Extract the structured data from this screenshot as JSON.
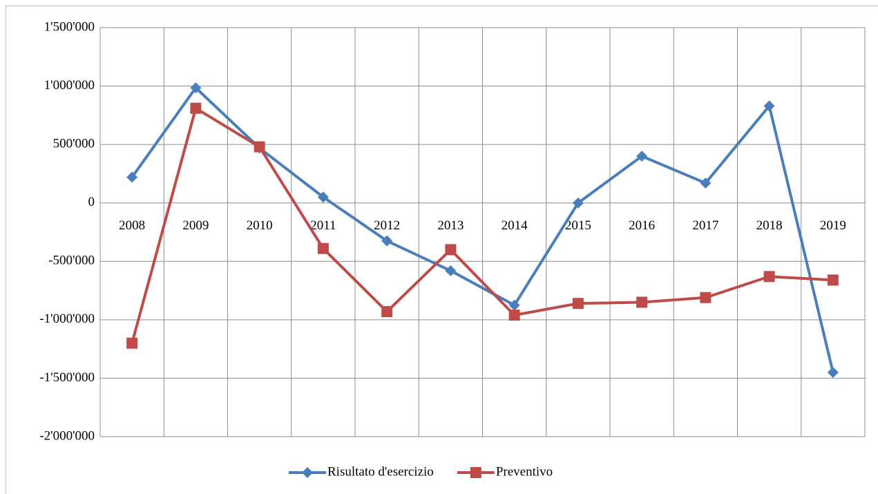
{
  "chart_data": {
    "type": "line",
    "categories": [
      "2008",
      "2009",
      "2010",
      "2011",
      "2012",
      "2013",
      "2014",
      "2015",
      "2016",
      "2017",
      "2018",
      "2019"
    ],
    "series": [
      {
        "name": "Risultato d'esercizio",
        "color": "#4a7ebb",
        "marker": "diamond",
        "values": [
          220000,
          985000,
          470000,
          50000,
          -325000,
          -580000,
          -875000,
          0,
          400000,
          170000,
          830000,
          -1450000
        ]
      },
      {
        "name": "Preventivo",
        "color": "#be4b48",
        "marker": "square",
        "values": [
          -1200000,
          810000,
          480000,
          -390000,
          -930000,
          -400000,
          -960000,
          -860000,
          -850000,
          -810000,
          -630000,
          -660000
        ]
      }
    ],
    "ylim": [
      -2000000,
      1500000
    ],
    "yticks": [
      {
        "value": -2000000,
        "label": "-2'000'000"
      },
      {
        "value": -1500000,
        "label": "-1'500'000"
      },
      {
        "value": -1000000,
        "label": "-1'000'000"
      },
      {
        "value": -500000,
        "label": "-500'000"
      },
      0,
      {
        "value": 500000,
        "label": "500'000"
      },
      {
        "value": 1000000,
        "label": "1'000'000"
      },
      {
        "value": 1500000,
        "label": "1'500'000"
      }
    ],
    "grid": true,
    "legend": "bottom"
  }
}
